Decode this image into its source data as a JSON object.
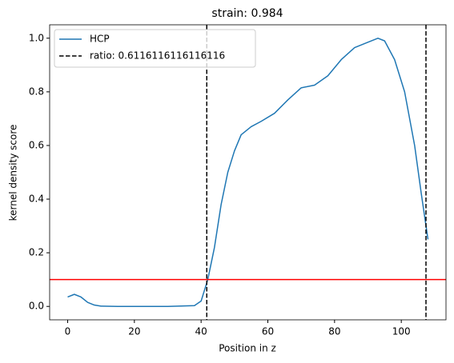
{
  "chart_data": {
    "type": "line",
    "title": "strain: 0.984",
    "xlabel": "Position in z",
    "ylabel": "kernel density score",
    "x": [
      0,
      2,
      4,
      6,
      8,
      10,
      15,
      20,
      30,
      38,
      40,
      42,
      44,
      46,
      48,
      50,
      52,
      55,
      58,
      62,
      66,
      70,
      74,
      78,
      82,
      86,
      90,
      93,
      95,
      98,
      101,
      104,
      106,
      108
    ],
    "series": [
      {
        "name": "HCP",
        "color": "#1f77b4",
        "values": [
          0.035,
          0.045,
          0.035,
          0.015,
          0.005,
          0.001,
          0,
          0,
          0,
          0.003,
          0.02,
          0.1,
          0.22,
          0.38,
          0.5,
          0.58,
          0.64,
          0.67,
          0.69,
          0.72,
          0.77,
          0.815,
          0.825,
          0.86,
          0.92,
          0.965,
          0.985,
          1.0,
          0.99,
          0.92,
          0.8,
          0.6,
          0.42,
          0.25
        ]
      }
    ],
    "vlines": {
      "name": "ratio: 0.6116116116116116",
      "color": "#000000",
      "x": [
        41.7,
        107.4
      ]
    },
    "hline": {
      "value": 0.1,
      "color": "#ff0000"
    },
    "xlim": [
      -5.4,
      113.4
    ],
    "ylim": [
      -0.05,
      1.05
    ],
    "xticks": [
      0,
      20,
      40,
      60,
      80,
      100
    ],
    "yticks": [
      {
        "value": 0,
        "label": "0.0"
      },
      0.2,
      0.4,
      0.6,
      0.8,
      {
        "value": 1,
        "label": "1.0"
      }
    ],
    "legend": "upper left"
  }
}
